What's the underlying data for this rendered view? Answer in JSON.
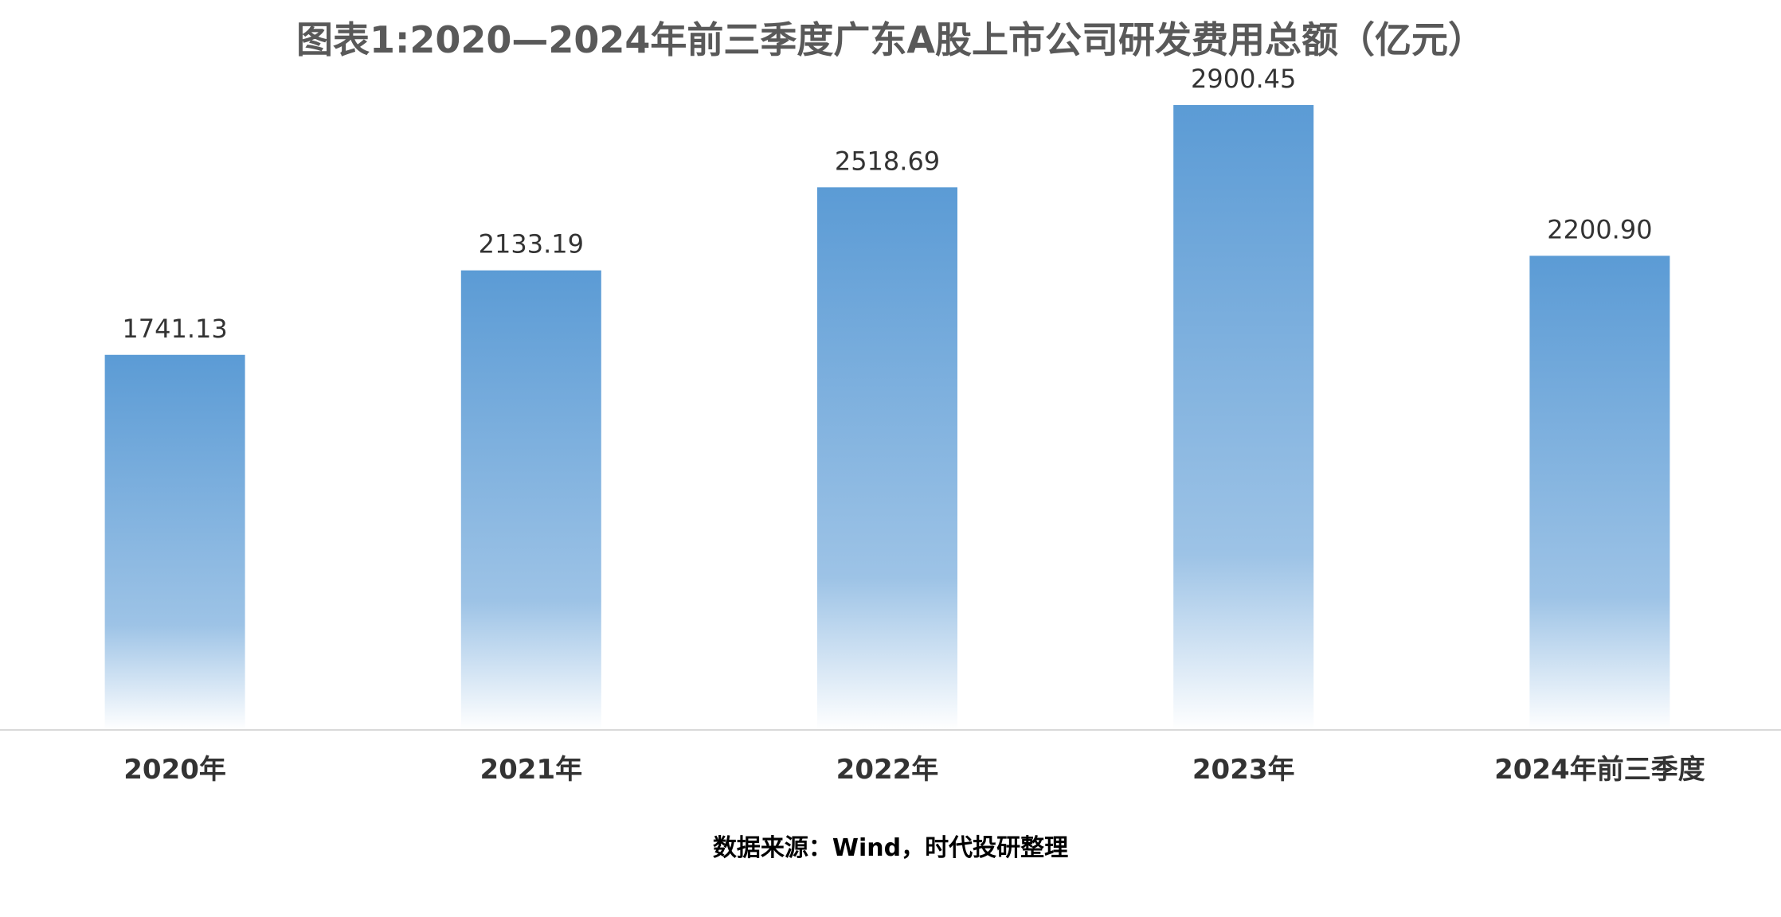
{
  "chart_data": {
    "type": "bar",
    "title": "图表1:2020—2024年前三季度广东A股上市公司研发费用总额（亿元）",
    "categories": [
      "2020年",
      "2021年",
      "2022年",
      "2023年",
      "2024年前三季度"
    ],
    "values": [
      1741.13,
      2133.19,
      2518.69,
      2900.45,
      2200.9
    ],
    "value_labels": [
      "1741.13",
      "2133.19",
      "2518.69",
      "2900.45",
      "2200.90"
    ],
    "ylim": [
      0,
      2900.45
    ],
    "grid": false,
    "legend": "none",
    "bar_color": "#5b9bd5",
    "bar_fade_color": "#ffffff"
  },
  "source": "数据来源：Wind，时代投研整理"
}
